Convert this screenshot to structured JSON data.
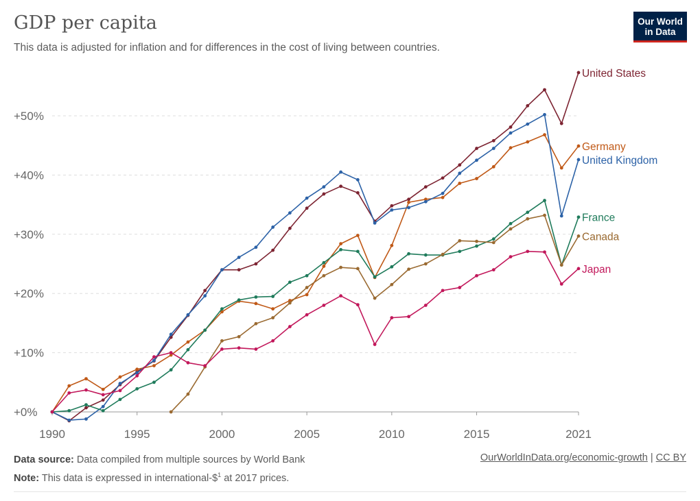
{
  "header": {
    "title": "GDP per capita",
    "subtitle": "This data is adjusted for inflation and for differences in the cost of living between countries.",
    "logo_line1": "Our World",
    "logo_line2": "in Data"
  },
  "footer": {
    "source_label": "Data source:",
    "source_text": "Data compiled from multiple sources by World Bank",
    "note_label": "Note:",
    "note_text": "This data is expressed in international-$",
    "note_sup": "1",
    "note_tail": " at 2017 prices.",
    "link": "OurWorldInData.org/economic-growth",
    "separator": "|",
    "license": "CC BY"
  },
  "chart_data": {
    "type": "line",
    "xlim": [
      1990,
      2021
    ],
    "ylim": [
      0,
      58
    ],
    "x_ticks": [
      1990,
      1995,
      2000,
      2005,
      2010,
      2015,
      2021
    ],
    "y_ticks": [
      0,
      10,
      20,
      30,
      40,
      50
    ],
    "y_tick_labels": [
      "+0%",
      "+10%",
      "+20%",
      "+30%",
      "+40%",
      "+50%"
    ],
    "grid": "horizontal dashed",
    "legend": "end-of-line labels, right",
    "series": [
      {
        "name": "United States",
        "color": "#7d2432",
        "start": 1990,
        "values": [
          0,
          -1.5,
          0.7,
          2.0,
          4.6,
          6.8,
          8.6,
          12.6,
          16.3,
          20.5,
          24.0,
          24.0,
          25.0,
          27.3,
          31.0,
          34.4,
          36.8,
          38.1,
          37.0,
          32.2,
          34.8,
          35.9,
          38.0,
          39.5,
          41.7,
          44.5,
          45.8,
          48.1,
          51.7,
          54.4,
          48.7,
          57.3
        ]
      },
      {
        "name": "Germany",
        "color": "#c05917",
        "start": 1990,
        "values": [
          0,
          4.4,
          5.6,
          3.8,
          5.9,
          7.2,
          7.8,
          9.6,
          11.8,
          13.8,
          16.9,
          18.7,
          18.3,
          17.4,
          18.8,
          19.8,
          24.6,
          28.4,
          29.8,
          22.7,
          28.1,
          35.4,
          35.9,
          36.2,
          38.6,
          39.4,
          41.4,
          44.6,
          45.6,
          46.8,
          41.2,
          44.9
        ]
      },
      {
        "name": "United Kingdom",
        "color": "#2c62a7",
        "start": 1990,
        "values": [
          0,
          -1.4,
          -1.2,
          0.9,
          4.8,
          6.6,
          8.7,
          13.1,
          16.4,
          19.6,
          24.0,
          26.1,
          27.8,
          31.2,
          33.6,
          36.1,
          38.0,
          40.5,
          39.2,
          31.9,
          34.1,
          34.5,
          35.5,
          36.9,
          40.3,
          42.5,
          44.5,
          47.1,
          48.6,
          50.2,
          33.1,
          42.6
        ]
      },
      {
        "name": "France",
        "color": "#1f7b5b",
        "start": 1990,
        "values": [
          0,
          0.2,
          1.2,
          0.2,
          2.1,
          3.9,
          5.0,
          7.1,
          10.5,
          13.8,
          17.4,
          18.9,
          19.4,
          19.5,
          21.9,
          23.0,
          25.2,
          27.4,
          27.1,
          22.8,
          24.5,
          26.7,
          26.5,
          26.5,
          27.1,
          28.0,
          29.2,
          31.8,
          33.7,
          35.7,
          24.8,
          32.9
        ]
      },
      {
        "name": "Canada",
        "color": "#9a6a31",
        "start": 1997,
        "values": [
          0,
          3.0,
          7.6,
          12.0,
          12.7,
          14.9,
          15.9,
          18.4,
          21.0,
          23.0,
          24.4,
          24.2,
          19.2,
          21.5,
          24.1,
          25.0,
          26.6,
          28.9,
          28.8,
          28.6,
          30.9,
          32.6,
          33.2,
          24.8,
          29.7
        ]
      },
      {
        "name": "Japan",
        "color": "#c2185b",
        "start": 1990,
        "values": [
          0,
          3.2,
          3.7,
          2.9,
          3.6,
          6.1,
          9.3,
          10.0,
          8.3,
          7.8,
          10.6,
          10.8,
          10.6,
          12.0,
          14.4,
          16.4,
          18.0,
          19.6,
          18.1,
          11.4,
          15.9,
          16.1,
          18.0,
          20.5,
          21.0,
          23.0,
          24.0,
          26.2,
          27.1,
          27.0,
          21.6,
          24.2
        ]
      }
    ]
  }
}
